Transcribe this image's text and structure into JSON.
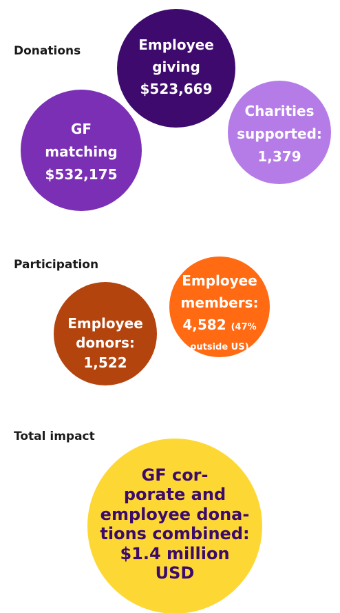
{
  "sections": [
    {
      "title": "Donations",
      "bubbles": [
        {
          "lines": [
            "Employee",
            "giving",
            "$523,669"
          ]
        },
        {
          "lines": [
            "Charities",
            "supported:",
            "1,379"
          ]
        },
        {
          "lines": [
            "GF",
            "matching",
            "$532,175"
          ]
        }
      ]
    },
    {
      "title": "Participation",
      "bubbles": [
        {
          "lines": [
            "Employee",
            "members:",
            "4,582"
          ],
          "note_lines": [
            "(47%",
            "outside US)"
          ]
        },
        {
          "lines": [
            "Employee",
            "donors:",
            "1,522"
          ]
        }
      ]
    },
    {
      "title": "Total impact",
      "bubbles": [
        {
          "lines": [
            "GF cor-",
            "porate and",
            "employee dona-",
            "tions combined:",
            "$1.4 million",
            "USD"
          ]
        }
      ]
    }
  ]
}
